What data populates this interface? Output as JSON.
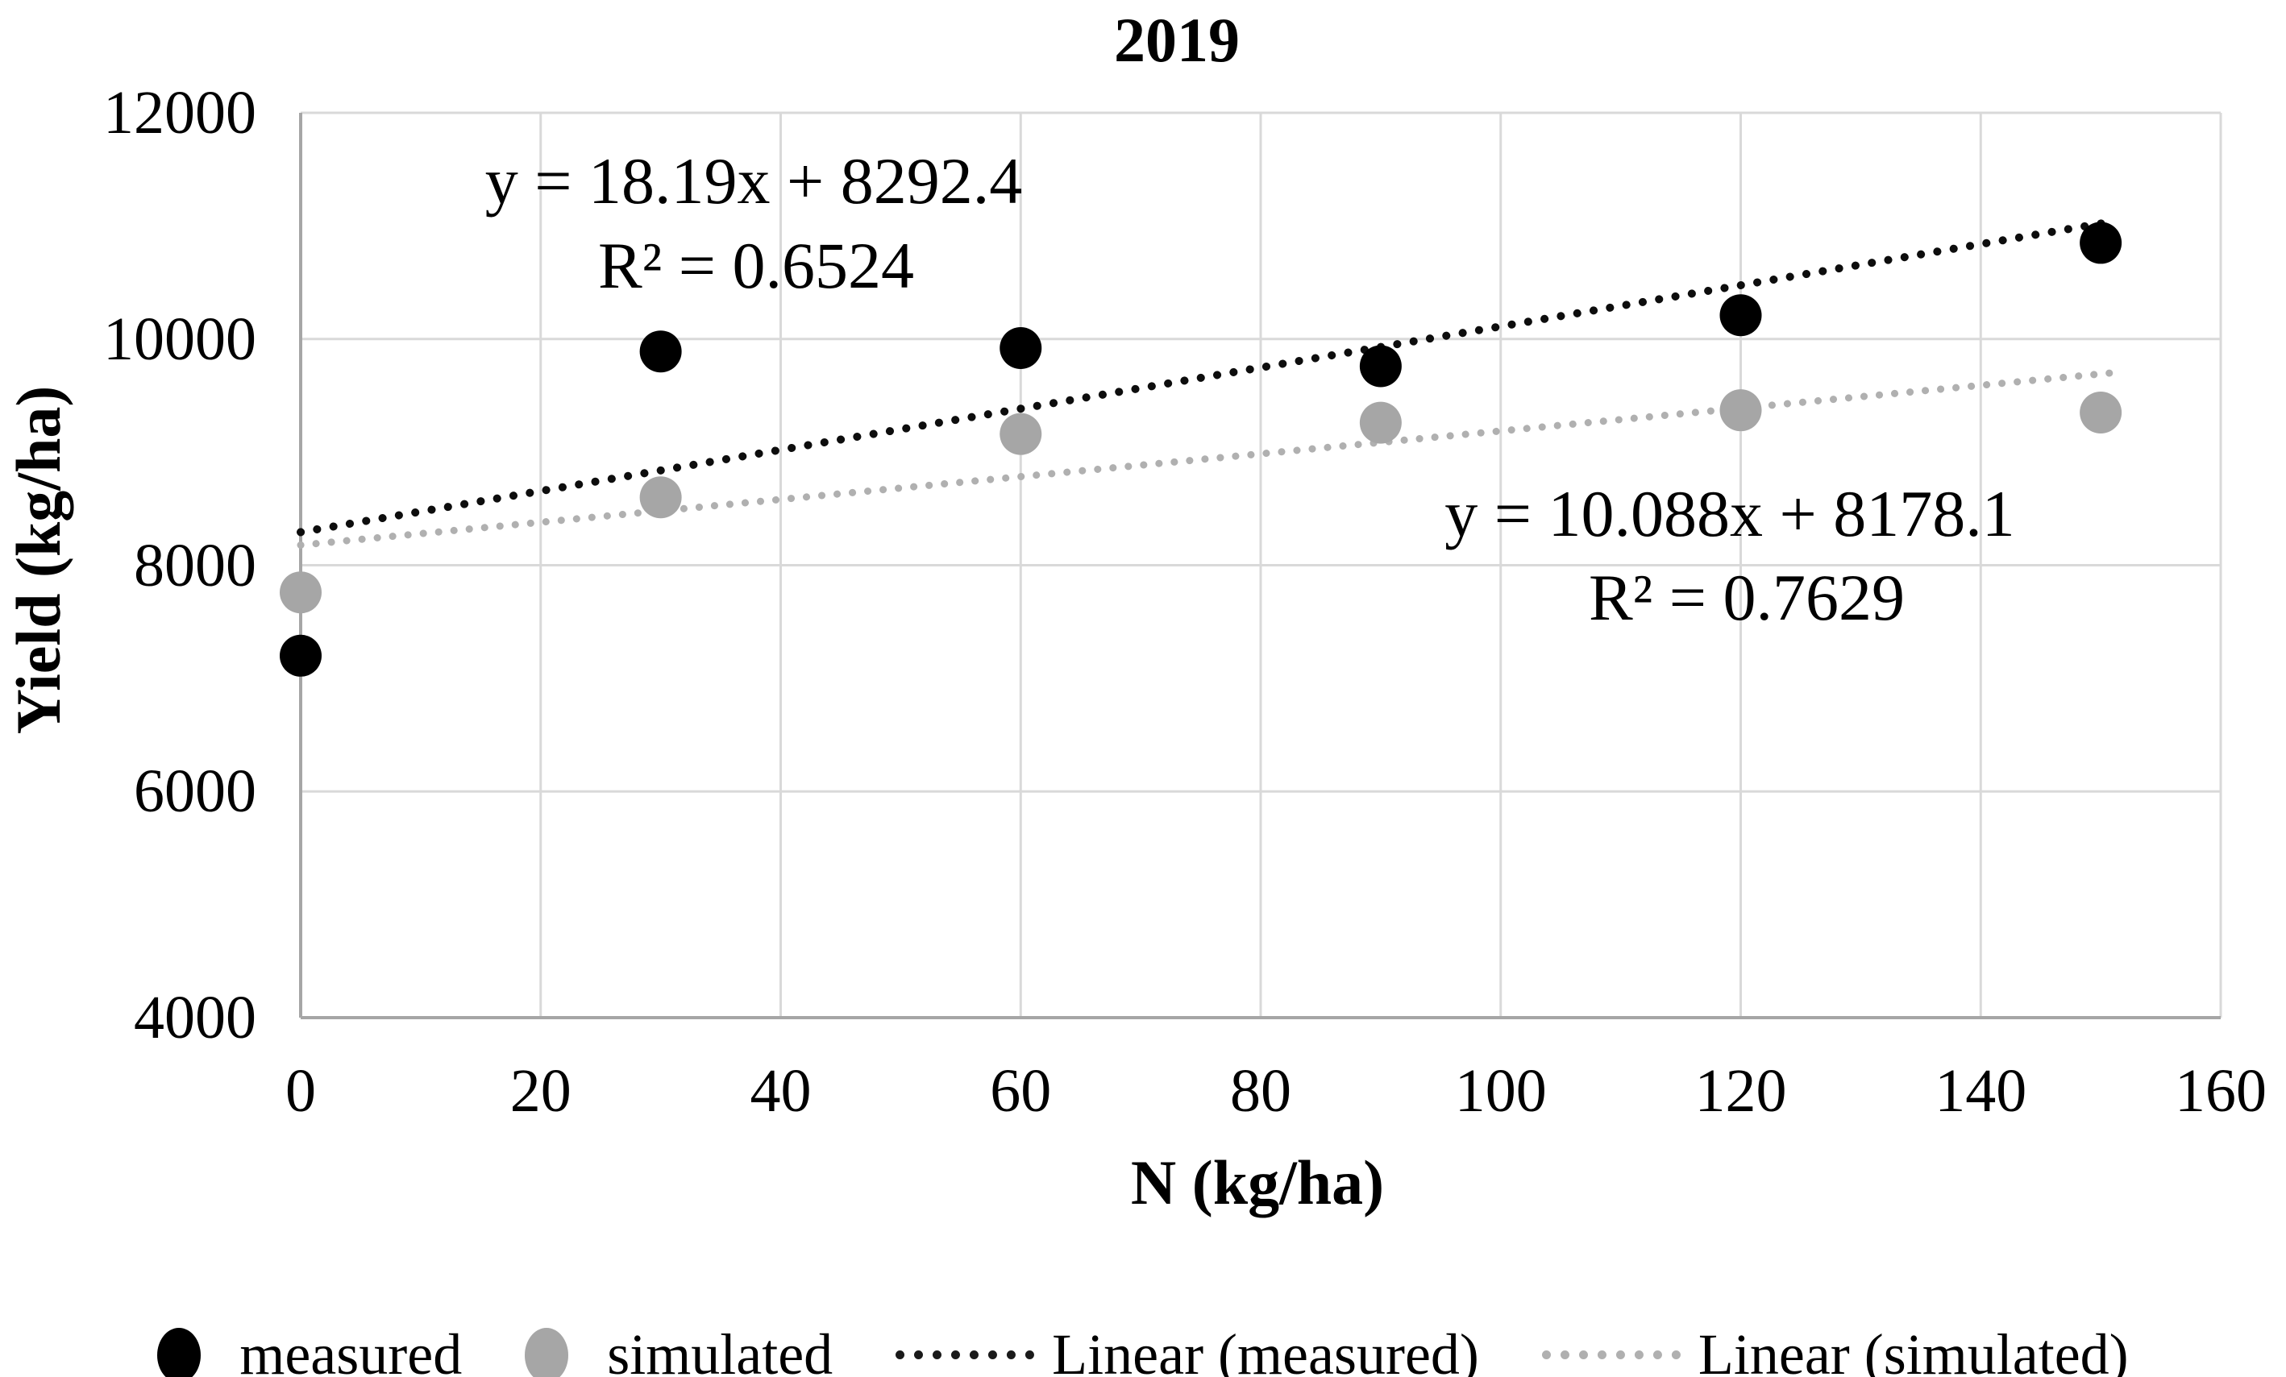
{
  "title": "2019",
  "axes": {
    "x": {
      "label": "N (kg/ha)",
      "min": 0,
      "max": 160,
      "step": 20,
      "ticks": [
        "0",
        "20",
        "40",
        "60",
        "80",
        "100",
        "120",
        "140",
        "160"
      ]
    },
    "y": {
      "label": "Yield (kg/ha)",
      "min": 4000,
      "max": 12000,
      "step": 2000,
      "ticks": [
        "4000",
        "6000",
        "8000",
        "10000",
        "12000"
      ]
    }
  },
  "chart_data": {
    "type": "scatter",
    "title": "2019",
    "xlabel": "N (kg/ha)",
    "ylabel": "Yield (kg/ha)",
    "xlim": [
      0,
      160
    ],
    "ylim": [
      4000,
      12000
    ],
    "grid": true,
    "x": [
      0,
      30,
      60,
      90,
      120,
      150
    ],
    "series": [
      {
        "name": "measured",
        "color": "#000000",
        "values": [
          7200,
          9890,
          9920,
          9760,
          10210,
          10850
        ]
      },
      {
        "name": "simulated",
        "color": "#a6a6a6",
        "values": [
          7760,
          8600,
          9160,
          9260,
          9370,
          9350
        ]
      }
    ],
    "trendlines": [
      {
        "name": "Linear (measured)",
        "color": "#0d0d0d",
        "slope": 18.19,
        "intercept": 8292.4,
        "r2": 0.6524,
        "x_draw": [
          0,
          151
        ],
        "equation": "y = 18.19x + 8292.4"
      },
      {
        "name": "Linear (simulated)",
        "color": "#b0b0b0",
        "slope": 10.088,
        "intercept": 8178.1,
        "r2": 0.7629,
        "x_draw": [
          0,
          151
        ],
        "equation": "y = 10.088x + 8178.1"
      }
    ],
    "legend_position": "bottom"
  },
  "annotations": {
    "measured_equation": "y = 18.19x + 8292.4",
    "measured_r2": "R² = 0.6524",
    "simulated_equation": "y = 10.088x + 8178.1",
    "simulated_r2": "R² = 0.7629"
  },
  "legend": [
    {
      "label": "measured",
      "marker": "dot",
      "color": "#000000"
    },
    {
      "label": "simulated",
      "marker": "dot",
      "color": "#a6a6a6"
    },
    {
      "label": "Linear (measured)",
      "marker": "dotted-line",
      "color": "#1a1a1a"
    },
    {
      "label": "Linear (simulated)",
      "marker": "dotted-line",
      "color": "#b0b0b0"
    }
  ],
  "colors": {
    "background": "#ffffff",
    "gridline": "#d9d9d9",
    "axis_line": "#a6a6a6",
    "text": "#000000"
  }
}
